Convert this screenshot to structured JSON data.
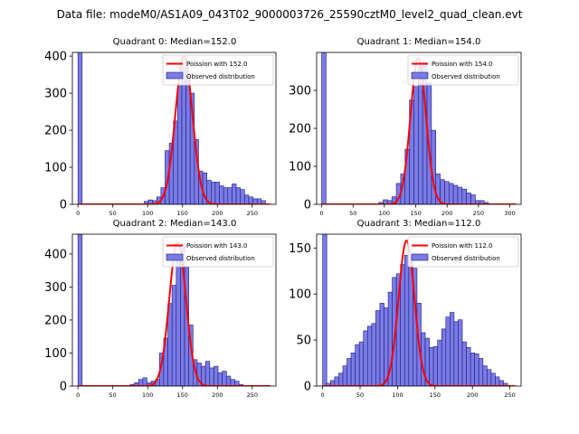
{
  "figure": {
    "suptitle": "Data file: modeM0/AS1A09_043T02_9000003726_25590cztM0_level2_quad_clean.evt"
  },
  "colors": {
    "bar_fill": "#7b7be6",
    "bar_edge": "#1a1a80",
    "curve": "#ff0000"
  },
  "chart_data": [
    {
      "type": "bar",
      "title": "Quadrant 0: Median=152.0",
      "xlim": [
        -8,
        284
      ],
      "ylim": [
        0,
        410
      ],
      "xticks": [
        0,
        50,
        100,
        150,
        200,
        250
      ],
      "yticks": [
        0,
        100,
        200,
        300,
        400
      ],
      "bin_width": 6,
      "legend": {
        "position": "top-right",
        "curve_label": "Poission with 152.0",
        "bar_label": "Observed distribution"
      },
      "bins": [
        0,
        95,
        101,
        107,
        113,
        119,
        125,
        131,
        137,
        143,
        149,
        155,
        161,
        167,
        173,
        179,
        185,
        191,
        197,
        203,
        209,
        215,
        221,
        227,
        233,
        239,
        245,
        251,
        257,
        263
      ],
      "values": [
        410,
        8,
        12,
        10,
        20,
        45,
        145,
        165,
        225,
        325,
        370,
        345,
        300,
        175,
        90,
        85,
        65,
        60,
        60,
        50,
        45,
        45,
        55,
        45,
        40,
        25,
        20,
        15,
        15,
        10
      ],
      "curve": {
        "mean": 152,
        "sigma": 12.3,
        "peak": 400
      }
    },
    {
      "type": "bar",
      "title": "Quadrant 1: Median=154.0",
      "xlim": [
        -8,
        318
      ],
      "ylim": [
        0,
        400
      ],
      "xticks": [
        0,
        50,
        100,
        150,
        200,
        250,
        300
      ],
      "yticks": [
        0,
        100,
        200,
        300
      ],
      "bin_width": 7,
      "legend": {
        "position": "top-right",
        "curve_label": "Poission with 154.0",
        "bar_label": "Observed distribution"
      },
      "bins": [
        0,
        91,
        98,
        105,
        112,
        119,
        126,
        133,
        140,
        147,
        154,
        161,
        168,
        175,
        182,
        189,
        196,
        203,
        210,
        217,
        224,
        231,
        238,
        245,
        252,
        259
      ],
      "values": [
        400,
        5,
        12,
        10,
        20,
        55,
        80,
        145,
        275,
        310,
        365,
        375,
        320,
        195,
        80,
        65,
        60,
        55,
        50,
        45,
        40,
        30,
        25,
        10,
        10,
        5
      ],
      "curve": {
        "mean": 154,
        "sigma": 12.4,
        "peak": 385
      }
    },
    {
      "type": "bar",
      "title": "Quadrant 2: Median=143.0",
      "xlim": [
        -8,
        284
      ],
      "ylim": [
        0,
        460
      ],
      "xticks": [
        0,
        50,
        100,
        150,
        200,
        250
      ],
      "yticks": [
        0,
        100,
        200,
        300,
        400
      ],
      "bin_width": 6,
      "legend": {
        "position": "top-right",
        "curve_label": "Poission with 143.0",
        "bar_label": "Observed distribution"
      },
      "bins": [
        0,
        75,
        81,
        87,
        93,
        99,
        105,
        111,
        117,
        123,
        129,
        135,
        141,
        147,
        153,
        159,
        165,
        171,
        177,
        183,
        189,
        195,
        201,
        207,
        213,
        219,
        225,
        231
      ],
      "values": [
        460,
        5,
        10,
        20,
        25,
        10,
        15,
        20,
        100,
        145,
        250,
        305,
        395,
        430,
        360,
        185,
        80,
        70,
        60,
        75,
        55,
        60,
        40,
        45,
        30,
        20,
        15,
        5
      ],
      "curve": {
        "mean": 143,
        "sigma": 12.0,
        "peak": 435
      }
    },
    {
      "type": "bar",
      "title": "Quadrant 3: Median=112.0",
      "xlim": [
        -8,
        265
      ],
      "ylim": [
        0,
        165
      ],
      "xticks": [
        0,
        50,
        100,
        150,
        200,
        250
      ],
      "yticks": [
        0,
        50,
        100,
        150
      ],
      "bin_width": 5.5,
      "legend": {
        "position": "top-right",
        "curve_label": "Poission with 112.0",
        "bar_label": "Observed distribution"
      },
      "bins": [
        0,
        5,
        10.5,
        16,
        21.5,
        27,
        32.5,
        38,
        43.5,
        49,
        54.5,
        60,
        65.5,
        71,
        76.5,
        82,
        87.5,
        93,
        98.5,
        104,
        109.5,
        115,
        120.5,
        126,
        131.5,
        137,
        142.5,
        148,
        153.5,
        159,
        164.5,
        170,
        175.5,
        181,
        186.5,
        192,
        197.5,
        203,
        208.5,
        214,
        219.5,
        225,
        230.5,
        236,
        241.5
      ],
      "values": [
        165,
        3,
        6,
        10,
        14,
        22,
        30,
        36,
        45,
        48,
        60,
        65,
        68,
        82,
        90,
        85,
        102,
        118,
        122,
        132,
        142,
        135,
        128,
        90,
        58,
        52,
        42,
        43,
        50,
        62,
        75,
        80,
        70,
        72,
        48,
        42,
        36,
        35,
        30,
        22,
        18,
        14,
        10,
        6,
        3
      ],
      "curve": {
        "mean": 112,
        "sigma": 10.6,
        "peak": 158
      }
    }
  ]
}
